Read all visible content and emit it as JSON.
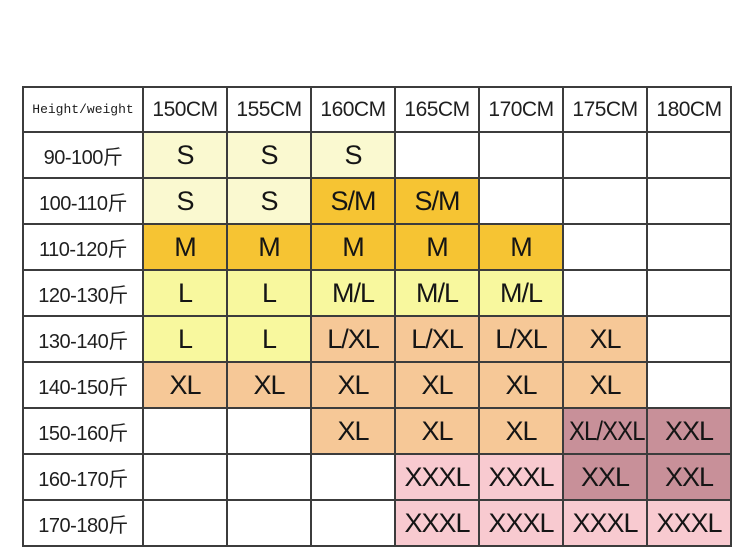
{
  "colors": {
    "pale_yellow": "#FAF9D0",
    "gold": "#F6C433",
    "bright_yellow": "#F8F89E",
    "peach": "#F6C897",
    "rose": "#C89099",
    "pink": "#F8CAD0",
    "empty": "#FFFFFF",
    "border": "#3C3C3C",
    "background": "#FFFFFF"
  },
  "chart_data": {
    "type": "table",
    "corner_label": "Height/weight",
    "columns": [
      "150CM",
      "155CM",
      "160CM",
      "165CM",
      "170CM",
      "175CM",
      "180CM"
    ],
    "rows": [
      {
        "label": "90-100斤",
        "cells": [
          {
            "text": "S",
            "color": "pale_yellow"
          },
          {
            "text": "S",
            "color": "pale_yellow"
          },
          {
            "text": "S",
            "color": "pale_yellow"
          },
          {
            "text": "",
            "color": "empty"
          },
          {
            "text": "",
            "color": "empty"
          },
          {
            "text": "",
            "color": "empty"
          },
          {
            "text": "",
            "color": "empty"
          }
        ]
      },
      {
        "label": "100-110斤",
        "cells": [
          {
            "text": "S",
            "color": "pale_yellow"
          },
          {
            "text": "S",
            "color": "pale_yellow"
          },
          {
            "text": "S/M",
            "color": "gold"
          },
          {
            "text": "S/M",
            "color": "gold"
          },
          {
            "text": "",
            "color": "empty"
          },
          {
            "text": "",
            "color": "empty"
          },
          {
            "text": "",
            "color": "empty"
          }
        ]
      },
      {
        "label": "110-120斤",
        "cells": [
          {
            "text": "M",
            "color": "gold"
          },
          {
            "text": "M",
            "color": "gold"
          },
          {
            "text": "M",
            "color": "gold"
          },
          {
            "text": "M",
            "color": "gold"
          },
          {
            "text": "M",
            "color": "gold"
          },
          {
            "text": "",
            "color": "empty"
          },
          {
            "text": "",
            "color": "empty"
          }
        ]
      },
      {
        "label": "120-130斤",
        "cells": [
          {
            "text": "L",
            "color": "bright_yellow"
          },
          {
            "text": "L",
            "color": "bright_yellow"
          },
          {
            "text": "M/L",
            "color": "bright_yellow"
          },
          {
            "text": "M/L",
            "color": "bright_yellow"
          },
          {
            "text": "M/L",
            "color": "bright_yellow"
          },
          {
            "text": "",
            "color": "empty"
          },
          {
            "text": "",
            "color": "empty"
          }
        ]
      },
      {
        "label": "130-140斤",
        "cells": [
          {
            "text": "L",
            "color": "bright_yellow"
          },
          {
            "text": "L",
            "color": "bright_yellow"
          },
          {
            "text": "L/XL",
            "color": "peach"
          },
          {
            "text": "L/XL",
            "color": "peach"
          },
          {
            "text": "L/XL",
            "color": "peach"
          },
          {
            "text": "XL",
            "color": "peach"
          },
          {
            "text": "",
            "color": "empty"
          }
        ]
      },
      {
        "label": "140-150斤",
        "cells": [
          {
            "text": "XL",
            "color": "peach"
          },
          {
            "text": "XL",
            "color": "peach"
          },
          {
            "text": "XL",
            "color": "peach"
          },
          {
            "text": "XL",
            "color": "peach"
          },
          {
            "text": "XL",
            "color": "peach"
          },
          {
            "text": "XL",
            "color": "peach"
          },
          {
            "text": "",
            "color": "empty"
          }
        ]
      },
      {
        "label": "150-160斤",
        "cells": [
          {
            "text": "",
            "color": "empty"
          },
          {
            "text": "",
            "color": "empty"
          },
          {
            "text": "XL",
            "color": "peach"
          },
          {
            "text": "XL",
            "color": "peach"
          },
          {
            "text": "XL",
            "color": "peach"
          },
          {
            "text": "XL/XXL",
            "color": "rose"
          },
          {
            "text": "XXL",
            "color": "rose"
          }
        ]
      },
      {
        "label": "160-170斤",
        "cells": [
          {
            "text": "",
            "color": "empty"
          },
          {
            "text": "",
            "color": "empty"
          },
          {
            "text": "",
            "color": "empty"
          },
          {
            "text": "XXXL",
            "color": "pink"
          },
          {
            "text": "XXXL",
            "color": "pink"
          },
          {
            "text": "XXL",
            "color": "rose"
          },
          {
            "text": "XXL",
            "color": "rose"
          }
        ]
      },
      {
        "label": "170-180斤",
        "cells": [
          {
            "text": "",
            "color": "empty"
          },
          {
            "text": "",
            "color": "empty"
          },
          {
            "text": "",
            "color": "empty"
          },
          {
            "text": "XXXL",
            "color": "pink"
          },
          {
            "text": "XXXL",
            "color": "pink"
          },
          {
            "text": "XXXL",
            "color": "pink"
          },
          {
            "text": "XXXL",
            "color": "pink"
          }
        ]
      }
    ]
  }
}
